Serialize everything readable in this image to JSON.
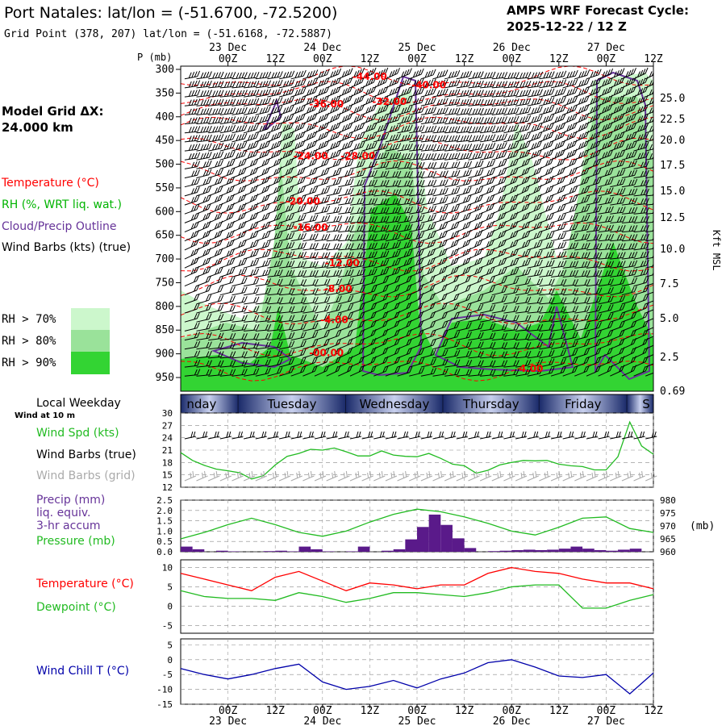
{
  "header": {
    "station_title": "Port Natales:  lat/lon = (-51.6700, -72.5200)",
    "grid_point": "Grid Point (378, 207) lat/lon = (-51.6168, -72.5887)",
    "forecast_label": "AMPS WRF Forecast Cycle:",
    "forecast_cycle": "2025-12-22 / 12  Z"
  },
  "model_grid": {
    "label": "Model Grid ΔX:",
    "value": " 24.000 km"
  },
  "colors": {
    "temperature": "#ff0000",
    "rh": "#00b400",
    "cloud_outline": "#663399",
    "wind_barbs": "#000000",
    "wind_barbs_grid": "#aaaaaa",
    "wind_speed": "#22bb22",
    "precip_bars": "#5a1a8a",
    "pressure": "#22bb22",
    "dewpoint": "#22bb22",
    "wind_chill": "#0000aa",
    "rh70": "#ccf7cc",
    "rh80": "#9ae29a",
    "rh90": "#33d433",
    "weekday_band": "#7a88b8"
  },
  "time_axis": {
    "tick_labels": [
      "00Z",
      "12Z",
      "00Z",
      "12Z",
      "00Z",
      "12Z",
      "00Z",
      "12Z",
      "00Z",
      "12Z"
    ],
    "date_labels": [
      "23 Dec",
      "24 Dec",
      "25 Dec",
      "26 Dec",
      "27 Dec"
    ],
    "hours_from_start": [
      12,
      24,
      36,
      48,
      60,
      72,
      84,
      96,
      108,
      120
    ],
    "date_hours": [
      12,
      36,
      60,
      84,
      108
    ]
  },
  "cross_section": {
    "p_axis_label": "P (mb)",
    "pressure_ticks": [
      "300",
      "350",
      "400",
      "450",
      "500",
      "550",
      "600",
      "650",
      "700",
      "750",
      "800",
      "850",
      "900",
      "950"
    ],
    "height_axis_label": "Kft MSL",
    "height_ticks": [
      "25.0",
      "22.5",
      "20.0",
      "17.5",
      "15.0",
      "12.5",
      "10.0",
      "7.5",
      "5.0",
      "2.5",
      "0.69"
    ],
    "legend": [
      "Temperature (°C)",
      "RH (%, WRT liq. wat.)",
      "Cloud/Precip Outline",
      "Wind Barbs (kts) (true)"
    ],
    "rh_legend": [
      "RH > 70%",
      "RH > 80%",
      "RH > 90%"
    ],
    "temp_contour_labels": [
      {
        "text": "-44.00",
        "hour": 48,
        "p": 322
      },
      {
        "text": "-40.00",
        "hour": 63,
        "p": 340
      },
      {
        "text": "-36.00",
        "hour": 37,
        "p": 380
      },
      {
        "text": "-32.00",
        "hour": 53,
        "p": 375
      },
      {
        "text": "-24.00",
        "hour": 33,
        "p": 490
      },
      {
        "text": "-28.00",
        "hour": 45,
        "p": 490
      },
      {
        "text": "-20.00",
        "hour": 31,
        "p": 585
      },
      {
        "text": "-16.00",
        "hour": 33,
        "p": 640
      },
      {
        "text": "-12.00",
        "hour": 41,
        "p": 715
      },
      {
        "text": "-8.00",
        "hour": 40,
        "p": 770
      },
      {
        "text": "-4.00",
        "hour": 39,
        "p": 835
      },
      {
        "text": "-00.00",
        "hour": 37,
        "p": 905
      },
      {
        "text": "4.00",
        "hour": 89,
        "p": 938
      }
    ]
  },
  "weekday_strip": {
    "title": "Local Weekday",
    "days": [
      "nday",
      "Tuesday",
      "Wednesday",
      "Thursday",
      "Friday",
      "S"
    ]
  },
  "wind_panel": {
    "subtitle": "Wind at 10 m",
    "labels": [
      "Wind Spd (kts)",
      "Wind Barbs (true)",
      "Wind Barbs (grid)"
    ],
    "y_ticks": [
      "30",
      "27",
      "24",
      "21",
      "18",
      "15",
      "12"
    ]
  },
  "precip_panel": {
    "labels": [
      "Precip (mm)",
      "liq. equiv.",
      "3-hr accum",
      "Pressure (mb)"
    ],
    "left_ticks": [
      "2.5",
      "2.0",
      "1.5",
      "1.0",
      "0.5",
      "0.0"
    ],
    "right_ticks": [
      "980",
      "975",
      "970",
      "965",
      "960"
    ],
    "right_unit": "(mb)"
  },
  "temp_panel": {
    "labels": [
      "Temperature (°C)",
      "Dewpoint (°C)"
    ],
    "y_ticks": [
      "10",
      "5",
      "0",
      "-5"
    ]
  },
  "windchill_panel": {
    "labels": [
      "Wind Chill T (°C)"
    ],
    "y_ticks": [
      "5",
      "0",
      "-5",
      "-10",
      "-15"
    ]
  },
  "chart_data": [
    {
      "type": "line",
      "title": "",
      "xlabel": "",
      "ylabel": "Wind Spd (kts)",
      "x": [
        0,
        3,
        6,
        9,
        12,
        15,
        18,
        21,
        24,
        27,
        30,
        33,
        36,
        39,
        42,
        45,
        48,
        51,
        54,
        57,
        60,
        63,
        66,
        69,
        72,
        75,
        78,
        81,
        84,
        87,
        90,
        93,
        96,
        99,
        102,
        105,
        108,
        111,
        114,
        117,
        120
      ],
      "ylim": [
        12,
        30
      ],
      "series": [
        {
          "name": "Wind Spd (kts)",
          "values": [
            20.4,
            18.5,
            17.3,
            16.4,
            16.0,
            15.5,
            14.0,
            14.8,
            17.4,
            19.5,
            20.2,
            21.2,
            21.0,
            21.5,
            20.6,
            19.6,
            19.6,
            20.8,
            19.8,
            19.5,
            19.4,
            20.2,
            19.0,
            17.6,
            17.2,
            15.4,
            16.1,
            17.4,
            18.0,
            18.5,
            18.4,
            18.5,
            17.6,
            17.2,
            17.0,
            16.2,
            16.2,
            19.4,
            27.8,
            22.0,
            20.0
          ]
        }
      ]
    },
    {
      "type": "bar",
      "title": "",
      "xlabel": "",
      "ylabel": "Precip (mm)",
      "x": [
        0,
        3,
        6,
        9,
        12,
        15,
        18,
        21,
        24,
        27,
        30,
        33,
        36,
        39,
        42,
        45,
        48,
        51,
        54,
        57,
        60,
        63,
        66,
        69,
        72,
        75,
        78,
        81,
        84,
        87,
        90,
        93,
        96,
        99,
        102,
        105,
        108,
        111,
        114,
        117
      ],
      "ylim": [
        0,
        2.5
      ],
      "series": [
        {
          "name": "Precip (mm)",
          "values": [
            0.25,
            0.12,
            0.0,
            0.05,
            0.02,
            0.0,
            0.0,
            0.03,
            0.05,
            0.02,
            0.25,
            0.12,
            0.02,
            0.0,
            0.02,
            0.25,
            0.0,
            0.05,
            0.12,
            0.6,
            1.2,
            1.8,
            1.3,
            0.65,
            0.18,
            0.0,
            0.03,
            0.05,
            0.08,
            0.1,
            0.08,
            0.1,
            0.15,
            0.25,
            0.15,
            0.08,
            0.05,
            0.1,
            0.15,
            0.0
          ]
        }
      ]
    },
    {
      "type": "line",
      "title": "",
      "xlabel": "",
      "ylabel": "Pressure (mb)",
      "x": [
        0,
        6,
        12,
        18,
        24,
        30,
        36,
        42,
        48,
        54,
        60,
        66,
        72,
        78,
        84,
        90,
        96,
        102,
        108,
        114,
        120
      ],
      "ylim": [
        960,
        980
      ],
      "series": [
        {
          "name": "Pressure (mb)",
          "values": [
            965.0,
            967.5,
            970.5,
            973.0,
            970.5,
            967.5,
            966.0,
            968.0,
            971.5,
            974.5,
            976.5,
            975.5,
            973.5,
            971.0,
            968.0,
            966.5,
            969.5,
            973.0,
            973.5,
            969.0,
            967.5
          ]
        }
      ]
    },
    {
      "type": "line",
      "title": "",
      "xlabel": "",
      "ylabel": "Temperature (°C)",
      "x": [
        0,
        6,
        12,
        18,
        24,
        30,
        36,
        42,
        48,
        54,
        60,
        66,
        72,
        78,
        84,
        90,
        96,
        102,
        108,
        114,
        120
      ],
      "ylim": [
        -5,
        10
      ],
      "series": [
        {
          "name": "Temperature (°C)",
          "values": [
            8.5,
            7.0,
            5.5,
            4.0,
            7.5,
            9.0,
            6.5,
            4.0,
            6.0,
            5.5,
            4.5,
            5.5,
            5.5,
            8.5,
            10.0,
            9.0,
            8.5,
            7.0,
            6.0,
            6.0,
            4.5
          ]
        },
        {
          "name": "Dewpoint (°C)",
          "values": [
            4.0,
            2.5,
            2.0,
            2.0,
            1.5,
            3.5,
            2.5,
            1.0,
            2.0,
            3.5,
            3.5,
            3.0,
            2.5,
            3.5,
            5.0,
            5.5,
            5.5,
            -0.5,
            -0.5,
            1.5,
            3.0
          ]
        }
      ]
    },
    {
      "type": "line",
      "title": "",
      "xlabel": "",
      "ylabel": "Wind Chill T (°C)",
      "x": [
        0,
        6,
        12,
        18,
        24,
        30,
        36,
        42,
        48,
        54,
        60,
        66,
        72,
        78,
        84,
        90,
        96,
        102,
        108,
        114,
        120
      ],
      "ylim": [
        -15,
        5
      ],
      "series": [
        {
          "name": "Wind Chill T (°C)",
          "values": [
            -3.0,
            -5.0,
            -6.5,
            -5.0,
            -3.0,
            -1.5,
            -7.5,
            -10.0,
            -9.0,
            -7.0,
            -9.5,
            -6.5,
            -4.5,
            -1.0,
            0.0,
            -2.5,
            -5.5,
            -6.0,
            -5.0,
            -11.5,
            -4.5
          ]
        }
      ]
    }
  ]
}
